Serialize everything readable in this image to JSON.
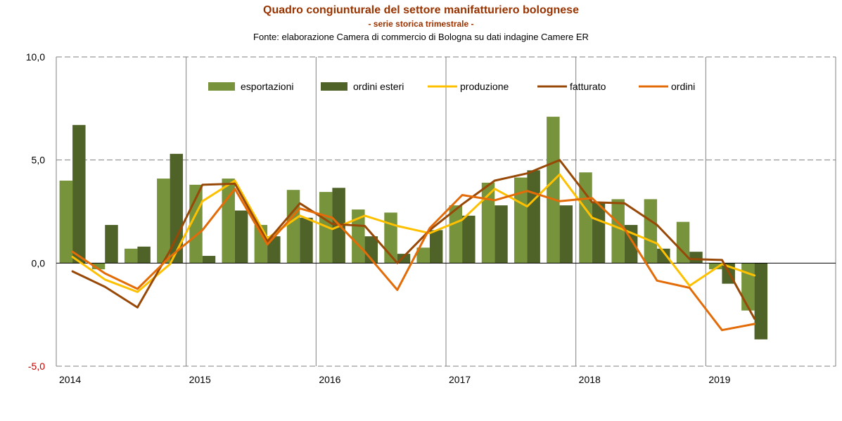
{
  "header": {
    "title": "Quadro congiunturale del settore manifatturiero bolognese",
    "subtitle": "- serie storica trimestrale -",
    "source": "Fonte: elaborazione Camera di commercio di Bologna su dati indagine Camere ER"
  },
  "colors": {
    "title": "#993300",
    "esportazioni": "#77933C",
    "ordini_esteri": "#4F6228",
    "produzione": "#FFC000",
    "fatturato": "#984807",
    "ordini": "#E36C09",
    "negative_tick": "#C00000"
  },
  "chart_data": {
    "type": "bar+line",
    "categories": [
      "2014 Q1",
      "2014 Q2",
      "2014 Q3",
      "2014 Q4",
      "2015 Q1",
      "2015 Q2",
      "2015 Q3",
      "2015 Q4",
      "2016 Q1",
      "2016 Q2",
      "2016 Q3",
      "2016 Q4",
      "2017 Q1",
      "2017 Q2",
      "2017 Q3",
      "2017 Q4",
      "2018 Q1",
      "2018 Q2",
      "2018 Q3",
      "2018 Q4",
      "2019 Q1",
      "2019 Q2"
    ],
    "year_labels": [
      "2014",
      "2015",
      "2016",
      "2017",
      "2018",
      "2019"
    ],
    "ylim": [
      -5,
      10
    ],
    "yticks": [
      "10,0",
      "5,0",
      "0,0",
      "-5,0"
    ],
    "ytick_values": [
      10,
      5,
      0,
      -5
    ],
    "grid": "horizontal dashed",
    "legend_position": "top",
    "bar_series": [
      {
        "key": "esportazioni",
        "name": "esportazioni",
        "values": [
          4.0,
          -0.3,
          0.7,
          4.1,
          3.8,
          4.1,
          1.85,
          3.55,
          3.45,
          2.6,
          2.45,
          0.75,
          2.8,
          3.9,
          4.15,
          7.1,
          4.4,
          3.1,
          3.1,
          2.0,
          -0.3,
          -2.3
        ]
      },
      {
        "key": "ordini_esteri",
        "name": "ordini esteri",
        "values": [
          6.7,
          1.85,
          0.8,
          5.3,
          0.35,
          2.55,
          1.3,
          2.2,
          3.65,
          1.3,
          0.45,
          1.6,
          2.3,
          2.8,
          4.5,
          2.8,
          2.95,
          1.85,
          0.7,
          0.55,
          -1.0,
          -3.7
        ]
      }
    ],
    "line_series": [
      {
        "key": "produzione",
        "name": "produzione",
        "values": [
          0.3,
          -0.8,
          -1.4,
          -0.05,
          3.0,
          4.0,
          1.2,
          2.3,
          1.65,
          2.3,
          1.8,
          1.45,
          2.1,
          3.6,
          2.75,
          4.3,
          2.2,
          1.6,
          0.95,
          -1.1,
          -0.05,
          -0.6
        ]
      },
      {
        "key": "fatturato",
        "name": "fatturato",
        "values": [
          -0.4,
          -1.15,
          -2.15,
          0.6,
          3.8,
          3.85,
          1.05,
          2.9,
          1.9,
          1.8,
          0.0,
          1.6,
          2.85,
          4.0,
          4.35,
          5.0,
          2.95,
          2.9,
          1.85,
          0.2,
          0.15,
          -2.7
        ]
      },
      {
        "key": "ordini",
        "name": "ordini",
        "values": [
          0.55,
          -0.5,
          -1.25,
          0.3,
          1.6,
          3.6,
          0.9,
          2.65,
          2.2,
          0.55,
          -1.3,
          1.7,
          3.3,
          3.05,
          3.5,
          3.0,
          3.15,
          1.65,
          -0.85,
          -1.2,
          -3.25,
          -2.95
        ]
      }
    ]
  }
}
